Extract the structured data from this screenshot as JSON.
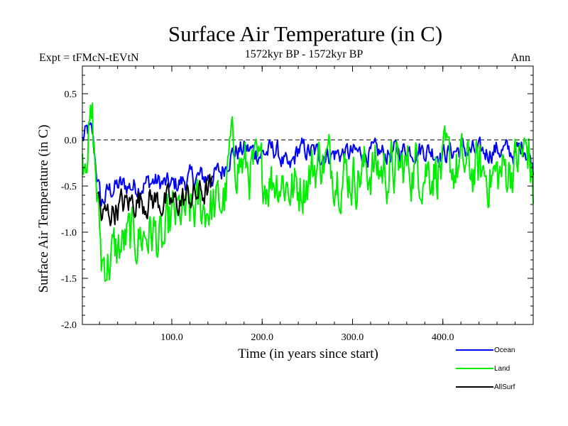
{
  "chart_data": {
    "type": "line",
    "title": "Surface Air Temperature (in C)",
    "subtitle_left": "Expt = tFMcN-tEVtN",
    "subtitle_center": "1572kyr BP - 1572kyr BP",
    "subtitle_right": "Ann",
    "xlabel": "Time (in years since start)",
    "ylabel": "Surface Air Temperature (in C)",
    "xlim": [
      1,
      500
    ],
    "ylim": [
      -2.0,
      0.8
    ],
    "xticks": [
      100,
      200,
      300,
      400
    ],
    "xtick_labels": [
      "100.0",
      "200.0",
      "300.0",
      "400.0"
    ],
    "yticks": [
      -2.0,
      -1.5,
      -1.0,
      -0.5,
      0.0,
      0.5
    ],
    "ytick_labels": [
      "-2.0",
      "-1.5",
      "-1.0",
      "-0.5",
      "0.0",
      "0.5"
    ],
    "reference_line": 0.0,
    "legend_position": "bottom-right, below plot",
    "series": [
      {
        "name": "Ocean",
        "color": "#0000ff",
        "anchors": [
          [
            1,
            0.0
          ],
          [
            8,
            0.1
          ],
          [
            12,
            0.05
          ],
          [
            18,
            -0.45
          ],
          [
            22,
            -0.7
          ],
          [
            30,
            -0.55
          ],
          [
            40,
            -0.5
          ],
          [
            50,
            -0.5
          ],
          [
            60,
            -0.5
          ],
          [
            80,
            -0.45
          ],
          [
            100,
            -0.5
          ],
          [
            120,
            -0.42
          ],
          [
            140,
            -0.4
          ],
          [
            155,
            -0.35
          ],
          [
            165,
            -0.15
          ],
          [
            180,
            -0.1
          ],
          [
            200,
            -0.15
          ],
          [
            215,
            -0.1
          ],
          [
            230,
            -0.35
          ],
          [
            240,
            -0.1
          ],
          [
            260,
            -0.15
          ],
          [
            280,
            -0.15
          ],
          [
            300,
            -0.15
          ],
          [
            320,
            -0.15
          ],
          [
            340,
            -0.15
          ],
          [
            360,
            -0.1
          ],
          [
            380,
            -0.1
          ],
          [
            400,
            -0.15
          ],
          [
            420,
            -0.1
          ],
          [
            440,
            -0.15
          ],
          [
            460,
            -0.1
          ],
          [
            480,
            -0.15
          ],
          [
            490,
            -0.05
          ],
          [
            500,
            -0.3
          ]
        ],
        "noise": 0.1
      },
      {
        "name": "Land",
        "color": "#00ee00",
        "anchors": [
          [
            1,
            -0.2
          ],
          [
            8,
            0.1
          ],
          [
            12,
            0.15
          ],
          [
            18,
            -0.7
          ],
          [
            22,
            -1.3
          ],
          [
            30,
            -1.3
          ],
          [
            40,
            -1.2
          ],
          [
            50,
            -1.1
          ],
          [
            60,
            -1.05
          ],
          [
            80,
            -1.0
          ],
          [
            90,
            -1.2
          ],
          [
            100,
            -0.85
          ],
          [
            120,
            -0.8
          ],
          [
            140,
            -0.7
          ],
          [
            150,
            -0.75
          ],
          [
            160,
            -0.6
          ],
          [
            165,
            -0.1
          ],
          [
            180,
            -0.3
          ],
          [
            200,
            -0.4
          ],
          [
            220,
            -0.4
          ],
          [
            235,
            -0.55
          ],
          [
            250,
            -0.4
          ],
          [
            265,
            -0.2
          ],
          [
            280,
            -0.3
          ],
          [
            300,
            -0.4
          ],
          [
            320,
            -0.3
          ],
          [
            340,
            -0.35
          ],
          [
            360,
            -0.3
          ],
          [
            380,
            -0.3
          ],
          [
            400,
            -0.3
          ],
          [
            420,
            -0.3
          ],
          [
            440,
            -0.35
          ],
          [
            460,
            -0.4
          ],
          [
            480,
            -0.25
          ],
          [
            495,
            -0.1
          ],
          [
            500,
            -0.6
          ]
        ],
        "noise": 0.26
      },
      {
        "name": "AllSurf",
        "color": "#000000",
        "anchors": [
          [
            18,
            -0.55
          ],
          [
            22,
            -0.85
          ],
          [
            30,
            -0.8
          ],
          [
            40,
            -0.72
          ],
          [
            50,
            -0.7
          ],
          [
            60,
            -0.65
          ],
          [
            80,
            -0.65
          ],
          [
            100,
            -0.7
          ],
          [
            120,
            -0.62
          ],
          [
            140,
            -0.55
          ],
          [
            145,
            -0.55
          ]
        ],
        "noise": 0.14
      }
    ]
  }
}
